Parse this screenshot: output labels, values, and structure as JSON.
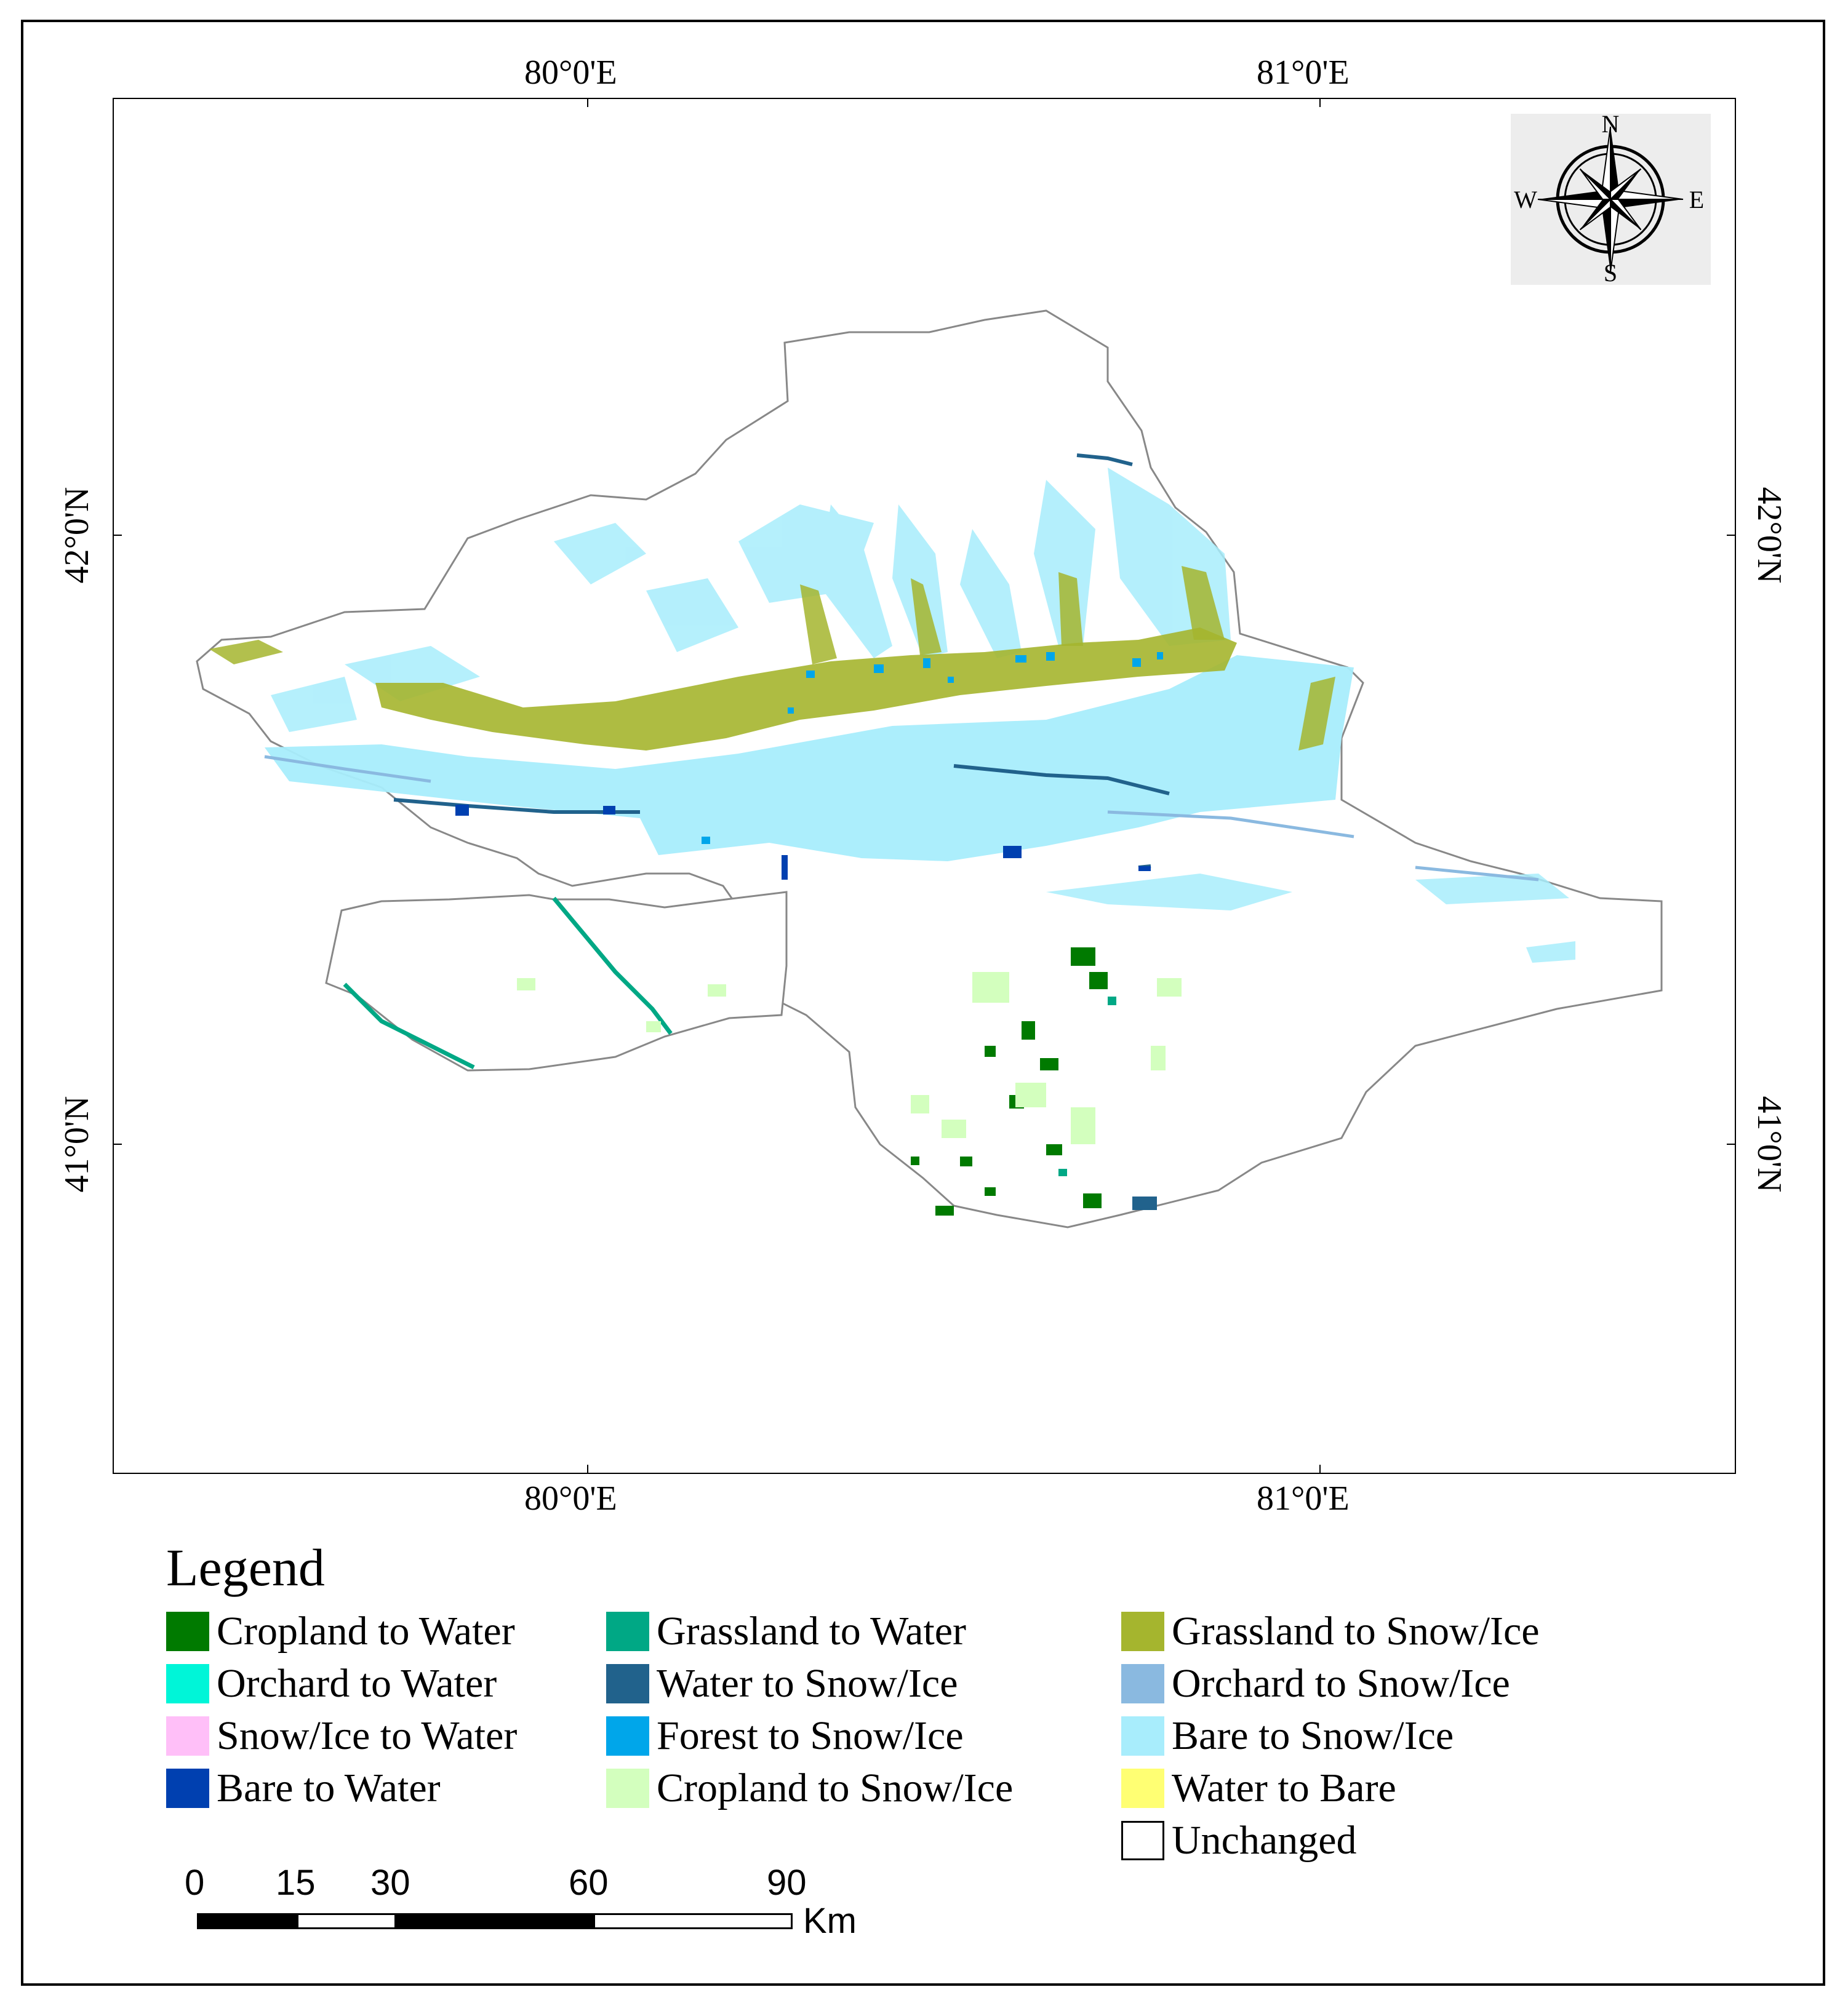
{
  "map": {
    "longitude_labels": [
      "80°0'E",
      "81°0'E"
    ],
    "latitude_labels": [
      "42°0'N",
      "41°0'N"
    ],
    "north_arrow": {
      "letters": {
        "north": "N",
        "south": "S",
        "east": "E",
        "west": "W"
      },
      "icon": "compass-rose-icon"
    }
  },
  "legend": {
    "title": "Legend",
    "items": [
      {
        "label": "Cropland to Water",
        "color": "#007a00"
      },
      {
        "label": "Orchard to Water",
        "color": "#00f5d8"
      },
      {
        "label": "Snow/Ice to Water",
        "color": "#ffbff8"
      },
      {
        "label": "Bare to Water",
        "color": "#0040b0"
      },
      {
        "label": "Grassland to Water",
        "color": "#00a885"
      },
      {
        "label": "Water to Snow/Ice",
        "color": "#21628c"
      },
      {
        "label": "Forest to Snow/Ice",
        "color": "#00a6ea"
      },
      {
        "label": "Cropland to Snow/Ice",
        "color": "#d3ffbe"
      },
      {
        "label": "Grassland to Snow/Ice",
        "color": "#a5b52e"
      },
      {
        "label": "Orchard to Snow/Ice",
        "color": "#8ab9e0"
      },
      {
        "label": "Bare to Snow/Ice",
        "color": "#a8edfc"
      },
      {
        "label": "Water to Bare",
        "color": "#ffff73"
      },
      {
        "label": "Unchanged",
        "color": "#ffffff"
      }
    ]
  },
  "scale_bar": {
    "ticks": [
      "0",
      "15",
      "30",
      "60",
      "90"
    ],
    "unit": "Km"
  }
}
